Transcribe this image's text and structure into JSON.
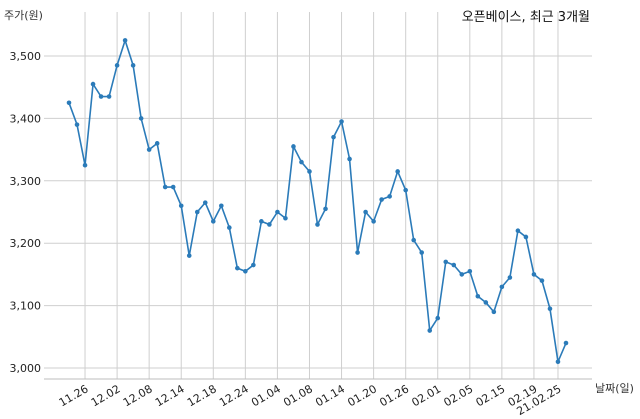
{
  "chart_data": {
    "type": "line",
    "title": "오픈베이스, 최근 3개월",
    "ylabel": "주가(원)",
    "xlabel": "날짜(일)",
    "ylim": [
      3000,
      3550
    ],
    "yticks": [
      3000,
      3100,
      3200,
      3300,
      3400,
      3500
    ],
    "ytick_labels": [
      "3,000",
      "3,100",
      "3,200",
      "3,300",
      "3,400",
      "3,500"
    ],
    "xtick_labels": [
      "11.26",
      "12.02",
      "12.08",
      "12.14",
      "12.18",
      "12.24",
      "01.04",
      "01.08",
      "01.14",
      "01.20",
      "01.26",
      "02.01",
      "02.05",
      "02.15",
      "02.19",
      "21.02.25"
    ],
    "xtick_index": [
      2,
      6,
      10,
      14,
      18,
      22,
      26,
      30,
      34,
      38,
      42,
      46,
      50,
      54,
      58,
      61
    ],
    "grid": true,
    "series": [
      {
        "values": [
          3425,
          3390,
          3325,
          3455,
          3435,
          3435,
          3485,
          3525,
          3485,
          3400,
          3350,
          3360,
          3290,
          3290,
          3260,
          3180,
          3250,
          3265,
          3235,
          3260,
          3225,
          3160,
          3155,
          3165,
          3235,
          3230,
          3250,
          3240,
          3355,
          3330,
          3315,
          3230,
          3255,
          3370,
          3395,
          3335,
          3185,
          3250,
          3235,
          3270,
          3275,
          3315,
          3285,
          3205,
          3185,
          3060,
          3080,
          3170,
          3165,
          3150,
          3155,
          3115,
          3105,
          3090,
          3130,
          3145,
          3220,
          3210,
          3150,
          3140,
          3095,
          3010,
          3040
        ]
      }
    ]
  }
}
